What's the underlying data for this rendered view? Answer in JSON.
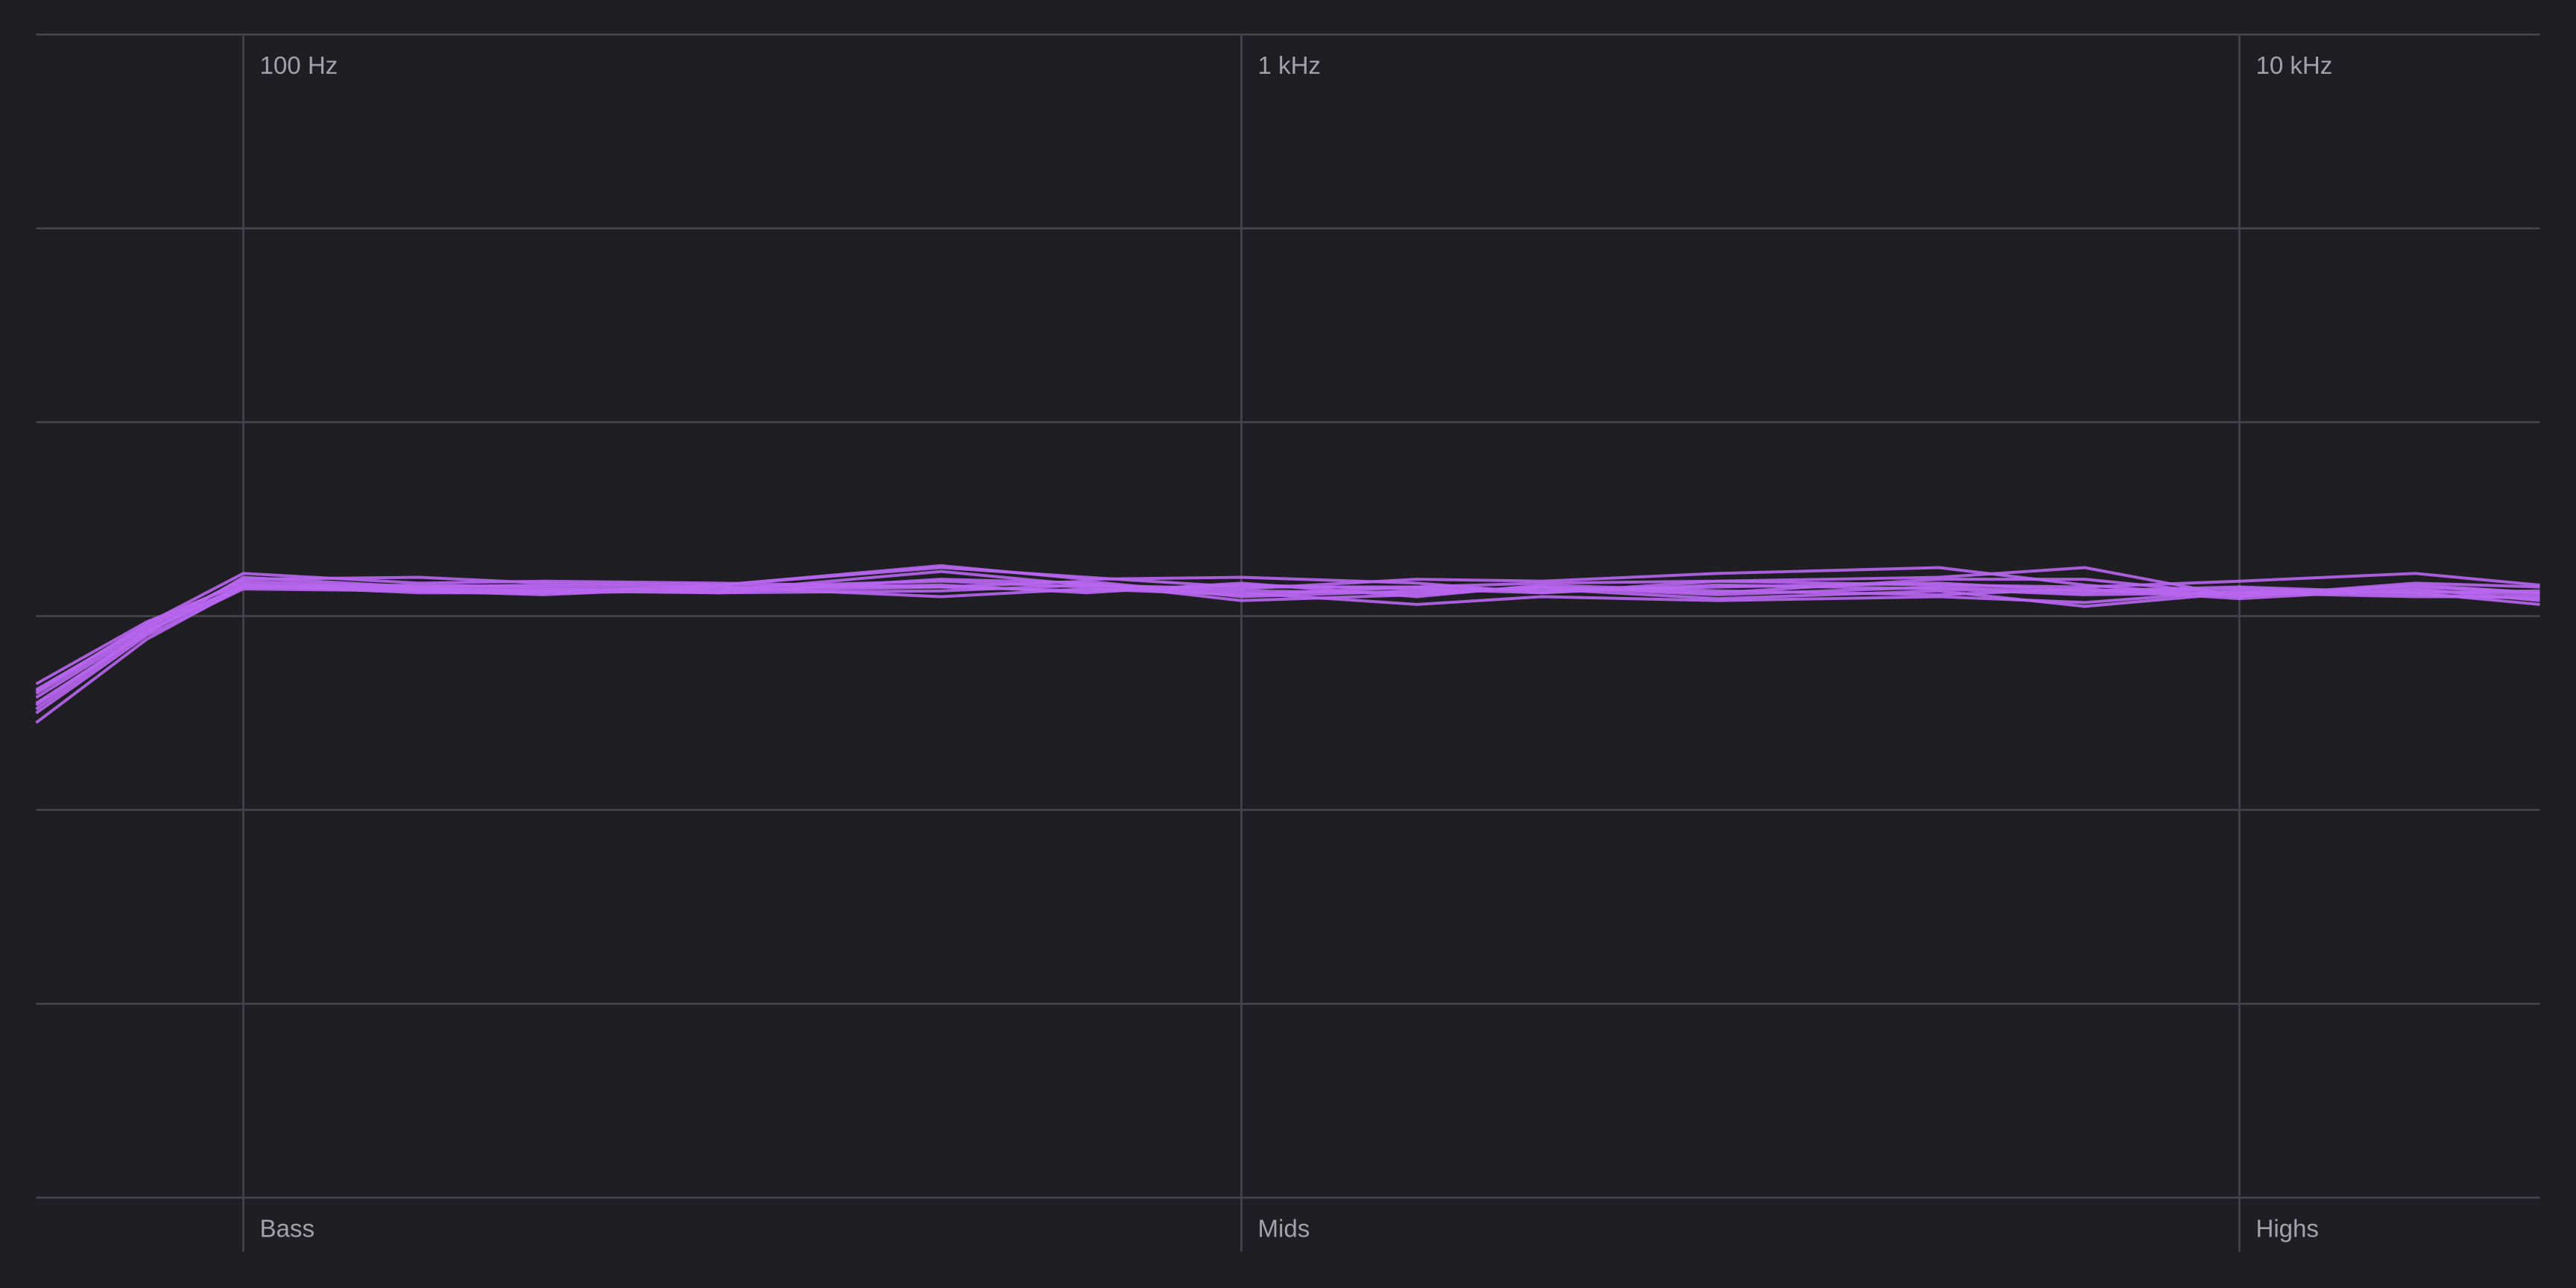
{
  "chart_data": {
    "type": "line",
    "log_x": true,
    "grid": true,
    "xlim": [
      62,
      20000
    ],
    "xticks": [
      {
        "value": 100,
        "label": "100 Hz"
      },
      {
        "value": 1000,
        "label": "1 kHz"
      },
      {
        "value": 10000,
        "label": "10 kHz"
      }
    ],
    "x_bands": [
      "Bass",
      "Mids",
      "Highs"
    ],
    "ylim": [
      -30,
      30
    ],
    "yticks": [
      -30,
      -20,
      -10,
      0,
      10,
      20,
      30
    ],
    "x": [
      62,
      80,
      100,
      150,
      200,
      300,
      500,
      700,
      1000,
      1500,
      2000,
      3000,
      5000,
      7000,
      10000,
      15000,
      20000
    ],
    "series": [
      {
        "color": "#b866f0",
        "values": [
          -4.5,
          -0.8,
          1.6,
          1.3,
          1.2,
          1.6,
          2.5,
          2.0,
          1.5,
          1.5,
          1.7,
          1.8,
          2.0,
          2.5,
          1.0,
          1.6,
          1.2
        ]
      },
      {
        "color": "#b866f0",
        "values": [
          -3.8,
          -0.5,
          1.8,
          1.5,
          1.4,
          1.2,
          1.3,
          1.6,
          1.3,
          1.2,
          1.5,
          1.1,
          1.5,
          1.2,
          1.4,
          1.2,
          0.6
        ]
      },
      {
        "color": "#b866f0",
        "values": [
          -5.5,
          -1.2,
          1.5,
          1.6,
          1.5,
          1.3,
          1.5,
          1.8,
          1.0,
          1.3,
          1.4,
          0.9,
          1.3,
          0.5,
          1.2,
          1.0,
          1.0
        ]
      },
      {
        "color": "#b866f0",
        "values": [
          -4.0,
          -0.6,
          1.9,
          2.0,
          1.7,
          1.6,
          2.6,
          1.9,
          2.0,
          1.7,
          1.2,
          1.8,
          1.6,
          1.5,
          1.8,
          2.2,
          1.6
        ]
      },
      {
        "color": "#b866f0",
        "values": [
          -3.5,
          -0.3,
          1.7,
          1.4,
          1.3,
          1.4,
          1.6,
          1.2,
          1.7,
          1.0,
          1.6,
          1.3,
          1.1,
          1.4,
          0.9,
          1.4,
          0.8
        ]
      },
      {
        "color": "#b866f0",
        "values": [
          -4.8,
          -0.9,
          2.0,
          1.5,
          1.6,
          1.5,
          1.0,
          1.4,
          1.1,
          1.5,
          1.3,
          1.5,
          1.7,
          1.3,
          1.5,
          1.2,
          1.3
        ]
      },
      {
        "color": "#b866f0",
        "values": [
          -4.2,
          -0.7,
          1.6,
          1.2,
          1.2,
          1.3,
          2.3,
          1.6,
          1.4,
          1.9,
          1.8,
          2.2,
          2.5,
          1.6,
          1.0,
          1.7,
          1.5
        ]
      },
      {
        "color": "#b866f0",
        "values": [
          -5.0,
          -1.0,
          1.4,
          1.3,
          1.1,
          1.5,
          1.8,
          1.5,
          1.2,
          0.6,
          1.0,
          0.8,
          1.0,
          0.7,
          1.3,
          1.1,
          0.9
        ]
      },
      {
        "color": "#b866f0",
        "values": [
          -3.9,
          -0.4,
          2.2,
          1.7,
          1.8,
          1.7,
          1.5,
          1.3,
          1.6,
          1.4,
          1.2,
          1.6,
          1.4,
          1.1,
          1.2,
          1.5,
          1.2
        ]
      },
      {
        "color": "#b866f0",
        "values": [
          -4.6,
          -0.8,
          1.5,
          1.4,
          1.3,
          1.2,
          1.9,
          1.7,
          0.8,
          1.1,
          1.5,
          1.2,
          1.9,
          1.9,
          1.1,
          1.3,
          1.1
        ]
      }
    ]
  }
}
